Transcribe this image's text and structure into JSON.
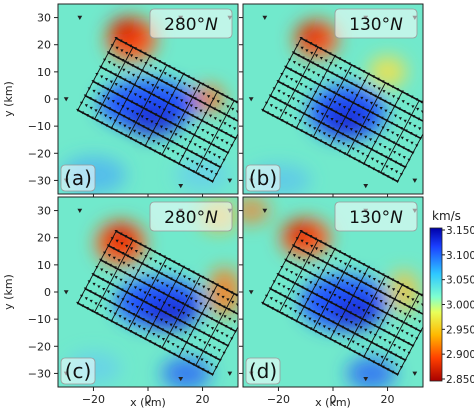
{
  "chart_data": {
    "type": "heatmap",
    "panels": [
      {
        "label": "(a)",
        "azimuth": "280°",
        "azimuth_unit": "N"
      },
      {
        "label": "(b)",
        "azimuth": "130°",
        "azimuth_unit": "N"
      },
      {
        "label": "(c)",
        "azimuth": "280°",
        "azimuth_unit": "N"
      },
      {
        "label": "(d)",
        "azimuth": "130°",
        "azimuth_unit": "N"
      }
    ],
    "xlabel": "x (km)",
    "ylabel": "y (km)",
    "xlim": [
      -33,
      33
    ],
    "ylim": [
      -35,
      35
    ],
    "x_ticks": [
      -20,
      0,
      20
    ],
    "y_ticks": [
      30,
      20,
      10,
      0,
      -10,
      -20,
      -30
    ],
    "colorbar": {
      "title": "km/s",
      "range": [
        2.85,
        3.15
      ],
      "ticks": [
        "3.150",
        "3.100",
        "3.050",
        "3.000",
        "2.950",
        "2.900",
        "2.850"
      ]
    },
    "grid_block": {
      "center": [
        6,
        -4
      ],
      "rotation_deg": -28,
      "half_length_km": 28,
      "half_width_km": 15
    }
  }
}
